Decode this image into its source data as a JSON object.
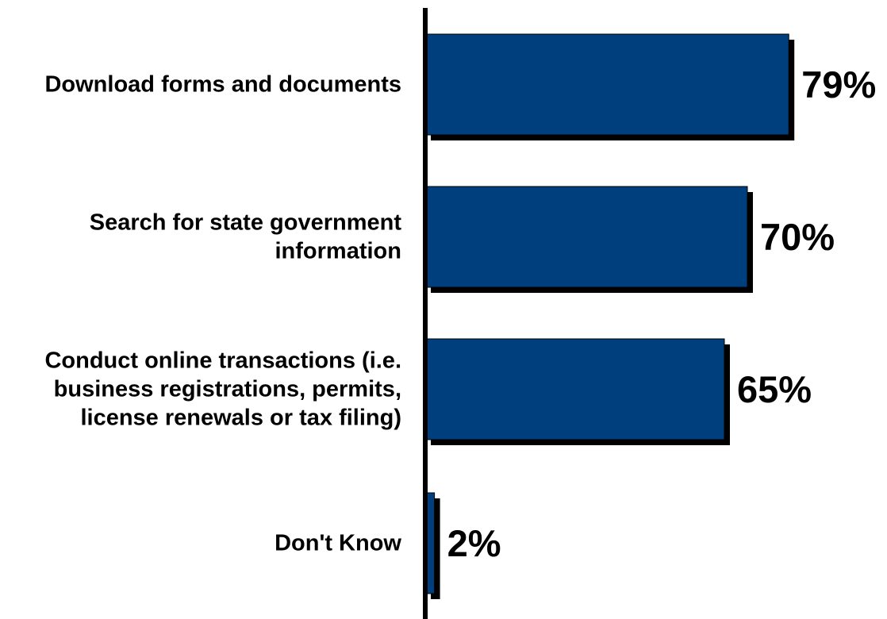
{
  "chart_data": {
    "type": "bar",
    "orientation": "horizontal",
    "categories": [
      [
        "Download forms and documents"
      ],
      [
        "Search for state government",
        "information"
      ],
      [
        "Conduct online transactions (i.e.",
        "business registrations, permits,",
        "license renewals or tax filing)"
      ],
      [
        "Don't Know"
      ]
    ],
    "values": [
      79,
      70,
      65,
      2
    ],
    "value_labels": [
      "79%",
      "70%",
      "65%",
      "2%"
    ],
    "unit": "%",
    "xlim": [
      0,
      100
    ],
    "grid": false,
    "legend": "none",
    "title": "",
    "xlabel": "",
    "ylabel": ""
  },
  "colors": {
    "bar": "#003f7d",
    "bar_shadow": "#000000",
    "axis": "#000000",
    "text": "#000000"
  }
}
